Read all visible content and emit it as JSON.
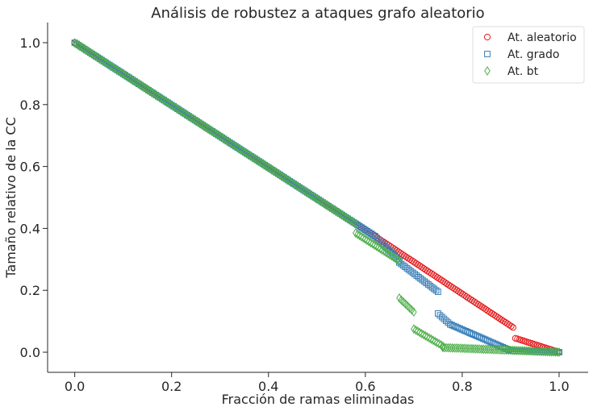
{
  "chart_data": {
    "type": "scatter",
    "title": "Análisis de robustez a ataques grafo aleatorio",
    "xlabel": "Fracción de ramas eliminadas",
    "ylabel": "Tamaño relativo de la CC",
    "xlim": [
      -0.056,
      1.06
    ],
    "ylim": [
      -0.065,
      1.065
    ],
    "xticks": [
      0.0,
      0.2,
      0.4,
      0.6,
      0.8,
      1.0
    ],
    "xtick_labels": [
      "0.0",
      "0.2",
      "0.4",
      "0.6",
      "0.8",
      "1.0"
    ],
    "yticks": [
      0.0,
      0.2,
      0.4,
      0.6,
      0.8,
      1.0
    ],
    "ytick_labels": [
      "0.0",
      "0.2",
      "0.4",
      "0.6",
      "0.8",
      "1.0"
    ],
    "grid": false,
    "legend_position": "top-right",
    "series": [
      {
        "name": "At. aleatorio",
        "marker": "circle",
        "color": "#e41a1c",
        "segments": [
          {
            "x": [
              0.0,
              0.6
            ],
            "y": [
              1.0,
              0.395
            ]
          },
          {
            "x": [
              0.6,
              0.905
            ],
            "y": [
              0.395,
              0.08
            ]
          },
          {
            "x": [
              0.91,
              1.0
            ],
            "y": [
              0.045,
              0.0
            ]
          }
        ]
      },
      {
        "name": "At. grado",
        "marker": "square",
        "color": "#377eb8",
        "segments": [
          {
            "x": [
              0.0,
              0.62
            ],
            "y": [
              1.0,
              0.375
            ]
          },
          {
            "x": [
              0.62,
              0.67
            ],
            "y": [
              0.375,
              0.295
            ]
          },
          {
            "x": [
              0.67,
              0.75
            ],
            "y": [
              0.29,
              0.195
            ]
          },
          {
            "x": [
              0.75,
              0.775
            ],
            "y": [
              0.125,
              0.09
            ]
          },
          {
            "x": [
              0.775,
              0.9
            ],
            "y": [
              0.09,
              0.005
            ]
          },
          {
            "x": [
              0.9,
              1.0
            ],
            "y": [
              0.005,
              0.0
            ]
          }
        ]
      },
      {
        "name": "At. bt",
        "marker": "diamond",
        "color": "#4daf4a",
        "segments": [
          {
            "x": [
              0.0,
              0.58
            ],
            "y": [
              1.0,
              0.415
            ]
          },
          {
            "x": [
              0.58,
              0.67
            ],
            "y": [
              0.385,
              0.295
            ]
          },
          {
            "x": [
              0.67,
              0.7
            ],
            "y": [
              0.175,
              0.13
            ]
          },
          {
            "x": [
              0.7,
              0.76
            ],
            "y": [
              0.075,
              0.02
            ]
          },
          {
            "x": [
              0.76,
              1.0
            ],
            "y": [
              0.015,
              0.0
            ]
          }
        ]
      }
    ]
  }
}
